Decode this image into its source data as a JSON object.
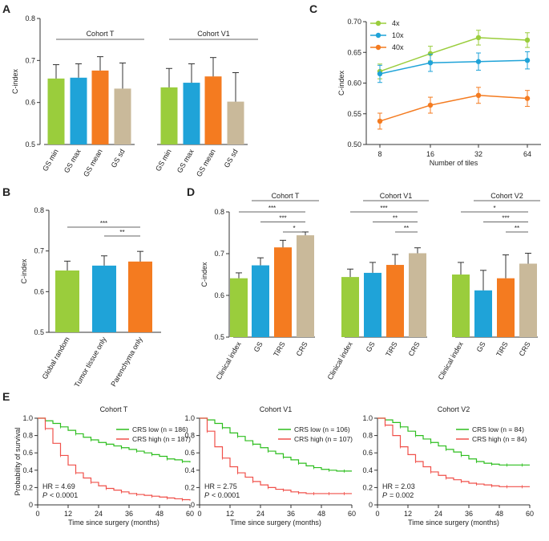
{
  "colors": {
    "green": "#9ACD3C",
    "blue": "#1FA3D8",
    "orange": "#F47B20",
    "tan": "#C9B99A",
    "km_low": "#2DBE1E",
    "km_high": "#F0504A",
    "axis": "#333333",
    "line_c_4x": "#9ACD3C",
    "line_c_10x": "#1FA3D8",
    "line_c_40x": "#F47B20"
  },
  "panels": {
    "a": {
      "label": "A"
    },
    "b": {
      "label": "B"
    },
    "c": {
      "label": "C"
    },
    "d": {
      "label": "D"
    },
    "e": {
      "label": "E"
    }
  },
  "chart_data": [
    {
      "id": "A",
      "type": "bar",
      "ylabel": "C-index",
      "ylim": [
        0.5,
        0.8
      ],
      "yticks": [
        "0.5",
        "0.6",
        "0.7",
        "0.8"
      ],
      "groups": [
        {
          "name": "Cohort T",
          "categories": [
            "GS min",
            "GS max",
            "GS mean",
            "GS sd"
          ],
          "values": [
            0.657,
            0.659,
            0.676,
            0.633
          ],
          "errors": [
            0.033,
            0.033,
            0.033,
            0.061
          ],
          "colors": [
            "green",
            "blue",
            "orange",
            "tan"
          ]
        },
        {
          "name": "Cohort V1",
          "categories": [
            "GS min",
            "GS max",
            "GS mean",
            "GS sd"
          ],
          "values": [
            0.636,
            0.647,
            0.662,
            0.602
          ],
          "errors": [
            0.045,
            0.045,
            0.045,
            0.069
          ],
          "colors": [
            "green",
            "blue",
            "orange",
            "tan"
          ]
        }
      ]
    },
    {
      "id": "B",
      "type": "bar",
      "ylabel": "C-index",
      "ylim": [
        0.5,
        0.8
      ],
      "yticks": [
        "0.5",
        "0.6",
        "0.7",
        "0.8"
      ],
      "categories": [
        "Global random",
        "Tumor tissue only",
        "Parenchyma only"
      ],
      "values": [
        0.652,
        0.664,
        0.674
      ],
      "errors": [
        0.023,
        0.024,
        0.025
      ],
      "colors": [
        "green",
        "blue",
        "orange"
      ],
      "significance": [
        {
          "from": 0,
          "to": 2,
          "label": "***"
        },
        {
          "from": 1,
          "to": 2,
          "label": "**"
        }
      ]
    },
    {
      "id": "C",
      "type": "line",
      "ylabel": "C-index",
      "xlabel": "Number of tiles",
      "x": [
        8,
        16,
        32,
        64
      ],
      "xticks": [
        "8",
        "16",
        "32",
        "64"
      ],
      "ylim": [
        0.5,
        0.7
      ],
      "yticks": [
        "0.50",
        "0.55",
        "0.60",
        "0.65",
        "0.70"
      ],
      "legend": "top-left",
      "series": [
        {
          "name": "4x",
          "values": [
            0.619,
            0.648,
            0.674,
            0.67
          ],
          "errors": [
            0.012,
            0.012,
            0.012,
            0.012
          ],
          "color": "green"
        },
        {
          "name": "10x",
          "values": [
            0.615,
            0.633,
            0.635,
            0.637
          ],
          "errors": [
            0.014,
            0.014,
            0.014,
            0.014
          ],
          "color": "blue"
        },
        {
          "name": "40x",
          "values": [
            0.538,
            0.564,
            0.58,
            0.575
          ],
          "errors": [
            0.013,
            0.013,
            0.013,
            0.013
          ],
          "color": "orange"
        }
      ]
    },
    {
      "id": "D",
      "type": "bar",
      "ylabel": "C-index",
      "ylim": [
        0.5,
        0.8
      ],
      "yticks": [
        "0.5",
        "0.6",
        "0.7",
        "0.8"
      ],
      "groups": [
        {
          "name": "Cohort T",
          "categories": [
            "Clinical index",
            "GS",
            "TiRS",
            "CRS"
          ],
          "values": [
            0.641,
            0.672,
            0.715,
            0.744
          ],
          "errors": [
            0.013,
            0.018,
            0.017,
            0.008
          ],
          "colors": [
            "green",
            "blue",
            "orange",
            "tan"
          ],
          "significance": [
            {
              "from": 0,
              "to": 3,
              "label": "***"
            },
            {
              "from": 1,
              "to": 3,
              "label": "***"
            },
            {
              "from": 2,
              "to": 3,
              "label": "*"
            }
          ]
        },
        {
          "name": "Cohort V1",
          "categories": [
            "Clinical index",
            "GS",
            "TiRS",
            "CRS"
          ],
          "values": [
            0.644,
            0.654,
            0.673,
            0.701
          ],
          "errors": [
            0.019,
            0.025,
            0.025,
            0.013
          ],
          "colors": [
            "green",
            "blue",
            "orange",
            "tan"
          ],
          "significance": [
            {
              "from": 0,
              "to": 3,
              "label": "***"
            },
            {
              "from": 1,
              "to": 3,
              "label": "**"
            },
            {
              "from": 2,
              "to": 3,
              "label": "**"
            }
          ]
        },
        {
          "name": "Cohort V2",
          "categories": [
            "Clinical index",
            "GS",
            "TiRS",
            "CRS"
          ],
          "values": [
            0.65,
            0.612,
            0.641,
            0.676
          ],
          "errors": [
            0.029,
            0.048,
            0.056,
            0.025
          ],
          "colors": [
            "green",
            "blue",
            "orange",
            "tan"
          ],
          "significance": [
            {
              "from": 0,
              "to": 3,
              "label": "*"
            },
            {
              "from": 1,
              "to": 3,
              "label": "***"
            },
            {
              "from": 2,
              "to": 3,
              "label": "**"
            }
          ]
        }
      ]
    },
    {
      "id": "E",
      "type": "line",
      "ylabel": "Probability of survival",
      "xlabel": "Time since surgery (months)",
      "xticks": [
        "0",
        "12",
        "24",
        "36",
        "48",
        "60"
      ],
      "yticks": [
        "0",
        "0.2",
        "0.4",
        "0.6",
        "0.8",
        "1.0"
      ],
      "xlim": [
        0,
        60
      ],
      "ylim": [
        0,
        1.0
      ],
      "plots": [
        {
          "title": "Cohort T",
          "legend_low": "CRS low (n = 186)",
          "legend_high": "CRS high (n = 187)",
          "hr": "HR = 4.69",
          "p_value": "< 0.0001",
          "low": {
            "t": [
              0,
              3,
              6,
              9,
              12,
              15,
              18,
              21,
              24,
              27,
              30,
              33,
              36,
              39,
              42,
              45,
              48,
              51,
              54,
              57,
              60
            ],
            "s": [
              1.0,
              0.97,
              0.94,
              0.9,
              0.86,
              0.82,
              0.78,
              0.75,
              0.72,
              0.7,
              0.68,
              0.66,
              0.64,
              0.62,
              0.6,
              0.58,
              0.56,
              0.53,
              0.52,
              0.5,
              0.49
            ]
          },
          "high": {
            "t": [
              0,
              3,
              6,
              9,
              12,
              15,
              18,
              21,
              24,
              27,
              30,
              33,
              36,
              39,
              42,
              45,
              48,
              51,
              54,
              57,
              60
            ],
            "s": [
              1.0,
              0.88,
              0.71,
              0.57,
              0.46,
              0.37,
              0.31,
              0.26,
              0.22,
              0.19,
              0.17,
              0.15,
              0.13,
              0.12,
              0.11,
              0.1,
              0.09,
              0.08,
              0.07,
              0.06,
              0.05
            ]
          }
        },
        {
          "title": "Cohort V1",
          "legend_low": "CRS low (n = 106)",
          "legend_high": "CRS high (n = 107)",
          "hr": "HR = 2.75",
          "p_value": "< 0.0001",
          "low": {
            "t": [
              0,
              3,
              6,
              9,
              12,
              15,
              18,
              21,
              24,
              27,
              30,
              33,
              36,
              39,
              42,
              45,
              48,
              51,
              54,
              57,
              60
            ],
            "s": [
              1.0,
              0.98,
              0.94,
              0.89,
              0.83,
              0.79,
              0.74,
              0.7,
              0.66,
              0.62,
              0.59,
              0.55,
              0.52,
              0.48,
              0.45,
              0.43,
              0.41,
              0.4,
              0.39,
              0.39,
              0.39
            ]
          },
          "high": {
            "t": [
              0,
              3,
              6,
              9,
              12,
              15,
              18,
              21,
              24,
              27,
              30,
              33,
              36,
              39,
              42,
              45,
              48,
              51,
              54,
              57,
              60
            ],
            "s": [
              1.0,
              0.85,
              0.67,
              0.54,
              0.44,
              0.37,
              0.32,
              0.27,
              0.23,
              0.2,
              0.18,
              0.17,
              0.15,
              0.14,
              0.13,
              0.13,
              0.13,
              0.13,
              0.13,
              0.13,
              0.13
            ]
          }
        },
        {
          "title": "Cohort V2",
          "legend_low": "CRS low (n = 84)",
          "legend_high": "CRS high (n = 84)",
          "hr": "HR = 2.03",
          "p_value": "= 0.002",
          "low": {
            "t": [
              0,
              3,
              6,
              9,
              12,
              15,
              18,
              21,
              24,
              27,
              30,
              33,
              36,
              39,
              42,
              45,
              48,
              51,
              54,
              57,
              60
            ],
            "s": [
              1.0,
              0.98,
              0.95,
              0.9,
              0.85,
              0.8,
              0.76,
              0.72,
              0.68,
              0.64,
              0.61,
              0.57,
              0.53,
              0.5,
              0.48,
              0.47,
              0.46,
              0.46,
              0.46,
              0.46,
              0.46
            ]
          },
          "high": {
            "t": [
              0,
              3,
              6,
              9,
              12,
              15,
              18,
              21,
              24,
              27,
              30,
              33,
              36,
              39,
              42,
              45,
              48,
              51,
              54,
              57,
              60
            ],
            "s": [
              1.0,
              0.92,
              0.8,
              0.67,
              0.58,
              0.5,
              0.44,
              0.38,
              0.34,
              0.31,
              0.29,
              0.27,
              0.25,
              0.24,
              0.23,
              0.22,
              0.21,
              0.21,
              0.21,
              0.21,
              0.21
            ]
          }
        }
      ]
    }
  ]
}
